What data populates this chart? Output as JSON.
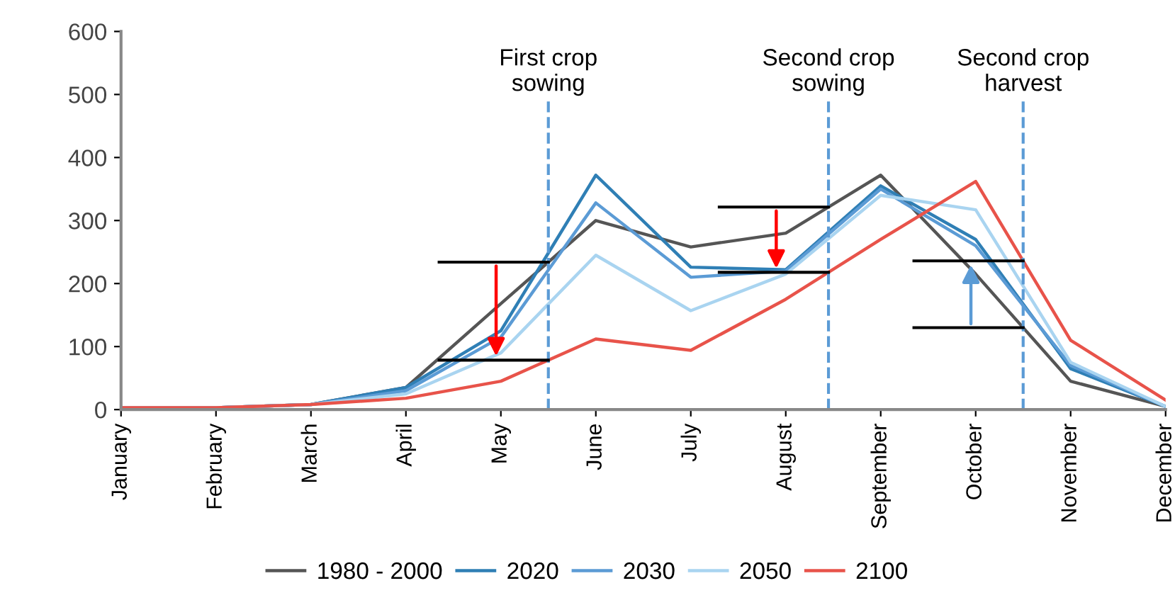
{
  "chart_data": {
    "type": "line",
    "categories": [
      "January",
      "February",
      "March",
      "April",
      "May",
      "June",
      "July",
      "August",
      "September",
      "October",
      "November",
      "December"
    ],
    "ylim": [
      0,
      600
    ],
    "yticks": [
      0,
      100,
      200,
      300,
      400,
      500,
      600
    ],
    "series": [
      {
        "name": "1980 - 2000",
        "color": "#555555",
        "values": [
          3,
          3,
          8,
          35,
          168,
          300,
          258,
          280,
          372,
          215,
          45,
          5
        ]
      },
      {
        "name": "2020",
        "color": "#2f7fb5",
        "values": [
          3,
          3,
          8,
          35,
          125,
          372,
          226,
          222,
          355,
          270,
          65,
          5
        ]
      },
      {
        "name": "2030",
        "color": "#5b9bd5",
        "values": [
          3,
          3,
          8,
          30,
          115,
          328,
          210,
          220,
          350,
          260,
          70,
          5
        ]
      },
      {
        "name": "2050",
        "color": "#a9d4f0",
        "values": [
          3,
          3,
          8,
          25,
          90,
          245,
          157,
          215,
          340,
          317,
          75,
          5
        ]
      },
      {
        "name": "2100",
        "color": "#e8534a",
        "values": [
          3,
          3,
          8,
          18,
          45,
          112,
          94,
          175,
          270,
          362,
          110,
          15
        ]
      }
    ],
    "annotations": [
      "First crop\nsowing",
      "Second crop\nsowing",
      "Second crop\nharvest"
    ],
    "grid": false,
    "legend": "bottom",
    "marker": "none",
    "line_style": "solid"
  }
}
